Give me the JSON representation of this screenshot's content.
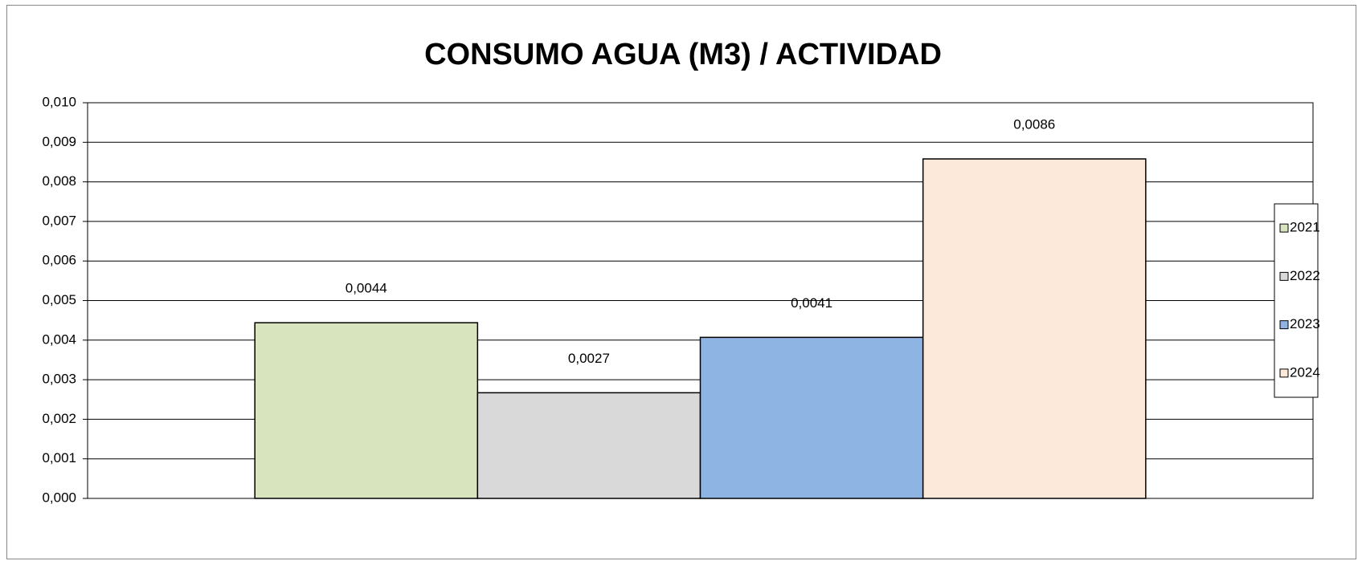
{
  "chart_data": {
    "type": "bar",
    "title": "CONSUMO AGUA (M3) / ACTIVIDAD",
    "categories": [
      null
    ],
    "series": [
      {
        "name": "2021",
        "color": "#d7e4bd",
        "values": [
          0.00444
        ],
        "value_labels": [
          "0,0044"
        ]
      },
      {
        "name": "2022",
        "color": "#d9d9d9",
        "values": [
          0.00267
        ],
        "value_labels": [
          "0,0027"
        ]
      },
      {
        "name": "2023",
        "color": "#8eb4e3",
        "values": [
          0.00407
        ],
        "value_labels": [
          "0,0041"
        ]
      },
      {
        "name": "2024",
        "color": "#fde9d9",
        "values": [
          0.00858
        ],
        "value_labels": [
          "0,0086"
        ]
      }
    ],
    "ylim": [
      0,
      0.01
    ],
    "yticks": [
      {
        "value": 0,
        "label": "0,000"
      },
      {
        "value": 0.001,
        "label": "0,001"
      },
      {
        "value": 0.002,
        "label": "0,002"
      },
      {
        "value": 0.003,
        "label": "0,003"
      },
      {
        "value": 0.004,
        "label": "0,004"
      },
      {
        "value": 0.005,
        "label": "0,005"
      },
      {
        "value": 0.006,
        "label": "0,006"
      },
      {
        "value": 0.007,
        "label": "0,007"
      },
      {
        "value": 0.008,
        "label": "0,008"
      },
      {
        "value": 0.009,
        "label": "0,009"
      },
      {
        "value": 0.01,
        "label": "0,010"
      }
    ],
    "grid": true,
    "legend": "right"
  }
}
